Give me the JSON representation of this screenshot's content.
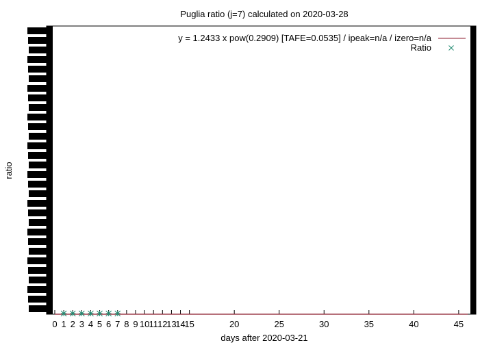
{
  "chart_data": {
    "type": "line",
    "title": "Puglia ratio (j=7) calculated on 2020-03-28",
    "xlabel": "days after 2020-03-21",
    "ylabel": "ratio",
    "xlim": [
      0,
      46
    ],
    "ylim": [
      0,
      1
    ],
    "x_ticks": [
      0,
      1,
      2,
      3,
      4,
      5,
      6,
      7,
      8,
      9,
      10,
      11,
      12,
      13,
      14,
      15,
      20,
      25,
      30,
      35,
      40,
      45
    ],
    "grid": false,
    "legend_position": "top-right",
    "series": [
      {
        "name": "y = 1.2433 x pow(0.2909)  [TAFE=0.0535] / ipeak=n/a / izero=n/a",
        "kind": "line",
        "color": "#8b1a2b",
        "x": [
          0,
          46
        ],
        "y": [
          0,
          0
        ]
      },
      {
        "name": "Ratio",
        "kind": "points",
        "marker": "x-star",
        "color": "#1f8a70",
        "x": [
          1,
          2,
          3,
          4,
          5,
          6,
          7
        ],
        "y": [
          0,
          0,
          0,
          0,
          0,
          0,
          0
        ]
      }
    ]
  }
}
